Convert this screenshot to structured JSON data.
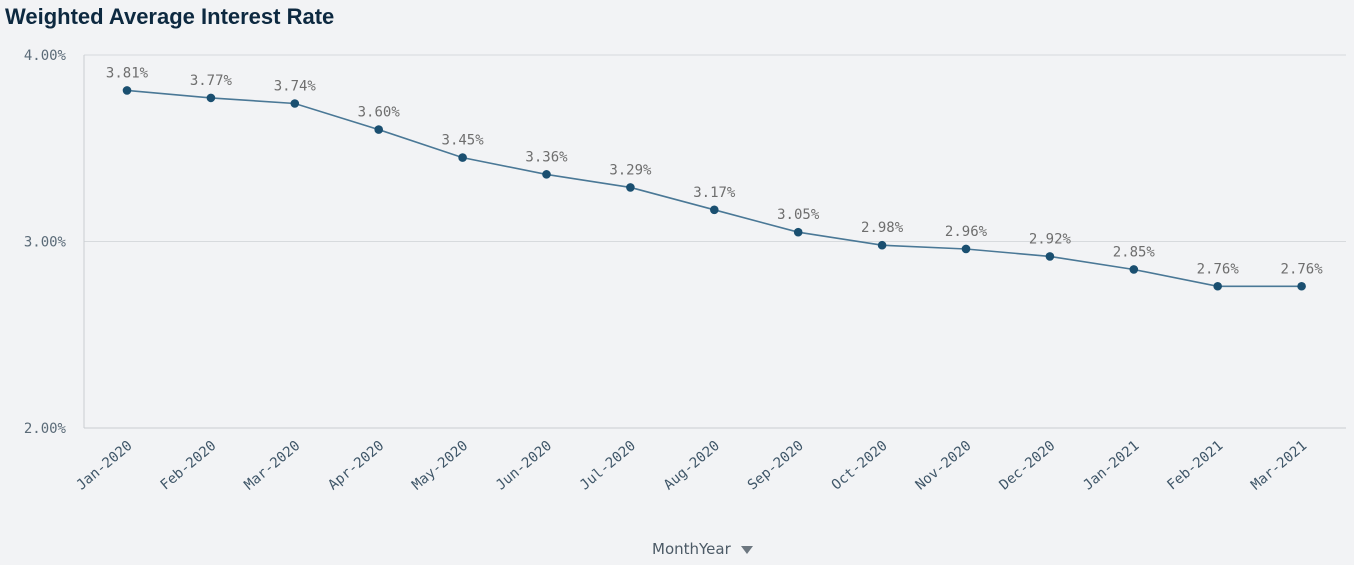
{
  "chart_data": {
    "type": "line",
    "title": "Weighted Average Interest Rate",
    "xlabel": "MonthYear",
    "ylabel": "",
    "categories": [
      "Jan-2020",
      "Feb-2020",
      "Mar-2020",
      "Apr-2020",
      "May-2020",
      "Jun-2020",
      "Jul-2020",
      "Aug-2020",
      "Sep-2020",
      "Oct-2020",
      "Nov-2020",
      "Dec-2020",
      "Jan-2021",
      "Feb-2021",
      "Mar-2021"
    ],
    "values": [
      3.81,
      3.77,
      3.74,
      3.6,
      3.45,
      3.36,
      3.29,
      3.17,
      3.05,
      2.98,
      2.96,
      2.92,
      2.85,
      2.76,
      2.76
    ],
    "data_labels": [
      "3.81%",
      "3.77%",
      "3.74%",
      "3.60%",
      "3.45%",
      "3.36%",
      "3.29%",
      "3.17%",
      "3.05%",
      "2.98%",
      "2.96%",
      "2.92%",
      "2.85%",
      "2.76%",
      "2.76%"
    ],
    "yticks": [
      2.0,
      3.0,
      4.0
    ],
    "ytick_labels": [
      "2.00%",
      "3.00%",
      "4.00%"
    ],
    "ylim": [
      2.0,
      4.0
    ],
    "grid": true,
    "legend": "none"
  },
  "colors": {
    "line": "#4a7896",
    "marker": "#1a4f70",
    "grid": "#d7dadd",
    "axis": "#c9cdd1",
    "title": "#0d2940"
  },
  "icons": {
    "dimension_dropdown": "caret-down-icon"
  }
}
